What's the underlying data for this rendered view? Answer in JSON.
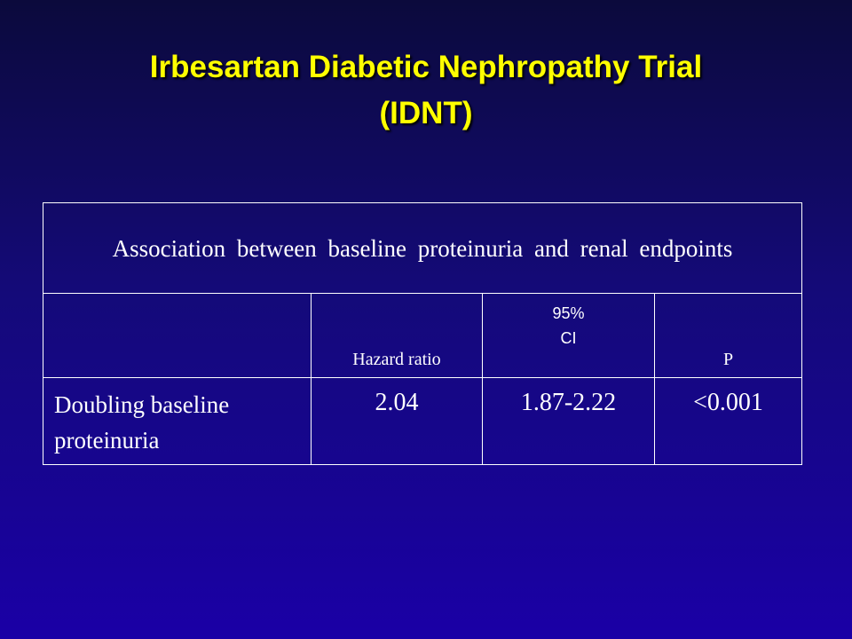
{
  "slide": {
    "title": [
      "Irbesartan Diabetic Nephropathy Trial",
      "(IDNT)"
    ],
    "table": {
      "caption": "Association between baseline proteinuria and renal endpoints",
      "header": [
        "Hazard ratio",
        "95% CI",
        "P"
      ],
      "rows": [
        [
          "Doubling baseline proteinuria",
          "2.04",
          "1.87-2.22",
          "<0.001"
        ]
      ]
    }
  }
}
